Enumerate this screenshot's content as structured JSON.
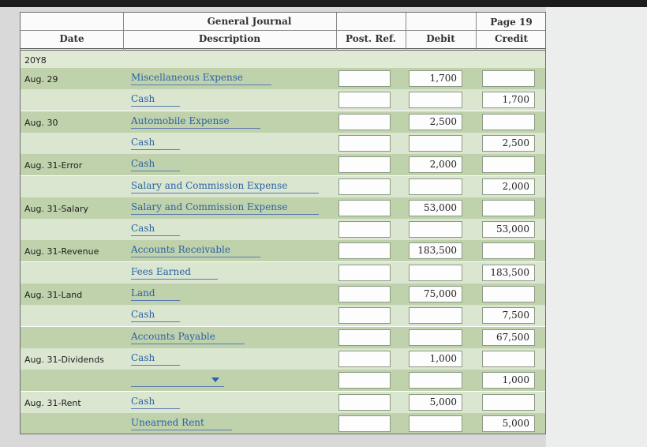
{
  "journal": {
    "title": "General Journal",
    "page_label": "Page 19",
    "columns": {
      "date": "Date",
      "description": "Description",
      "post_ref": "Post. Ref.",
      "debit": "Debit",
      "credit": "Credit"
    },
    "year": "20Y8"
  },
  "rows": [
    {
      "date": "Aug. 29",
      "account": "Miscellaneous Expense",
      "debit": "1,700",
      "credit": ""
    },
    {
      "date": "",
      "account": "Cash",
      "debit": "",
      "credit": "1,700"
    },
    {
      "date": "Aug. 30",
      "account": "Automobile Expense",
      "debit": "2,500",
      "credit": ""
    },
    {
      "date": "",
      "account": "Cash",
      "debit": "",
      "credit": "2,500"
    },
    {
      "date": "Aug. 31-Error",
      "account": "Cash",
      "debit": "2,000",
      "credit": ""
    },
    {
      "date": "",
      "account": "Salary and Commission Expense",
      "debit": "",
      "credit": "2,000"
    },
    {
      "date": "Aug. 31-Salary",
      "account": "Salary and Commission Expense",
      "debit": "53,000",
      "credit": ""
    },
    {
      "date": "",
      "account": "Cash",
      "debit": "",
      "credit": "53,000"
    },
    {
      "date": "Aug. 31-Revenue",
      "account": "Accounts Receivable",
      "debit": "183,500",
      "credit": ""
    },
    {
      "date": "",
      "account": "Fees Earned",
      "debit": "",
      "credit": "183,500"
    },
    {
      "date": "Aug. 31-Land",
      "account": "Land",
      "debit": "75,000",
      "credit": ""
    },
    {
      "date": "",
      "account": "Cash",
      "debit": "",
      "credit": "7,500"
    },
    {
      "date": "",
      "account": "Accounts Payable",
      "debit": "",
      "credit": "67,500"
    },
    {
      "date": "Aug. 31-Dividends",
      "account": "Cash",
      "debit": "1,000",
      "credit": ""
    },
    {
      "date": "",
      "account": "",
      "debit": "",
      "credit": "1,000"
    },
    {
      "date": "Aug. 31-Rent",
      "account": "Cash",
      "debit": "5,000",
      "credit": ""
    },
    {
      "date": "",
      "account": "Unearned Rent",
      "debit": "",
      "credit": "5,000"
    }
  ]
}
